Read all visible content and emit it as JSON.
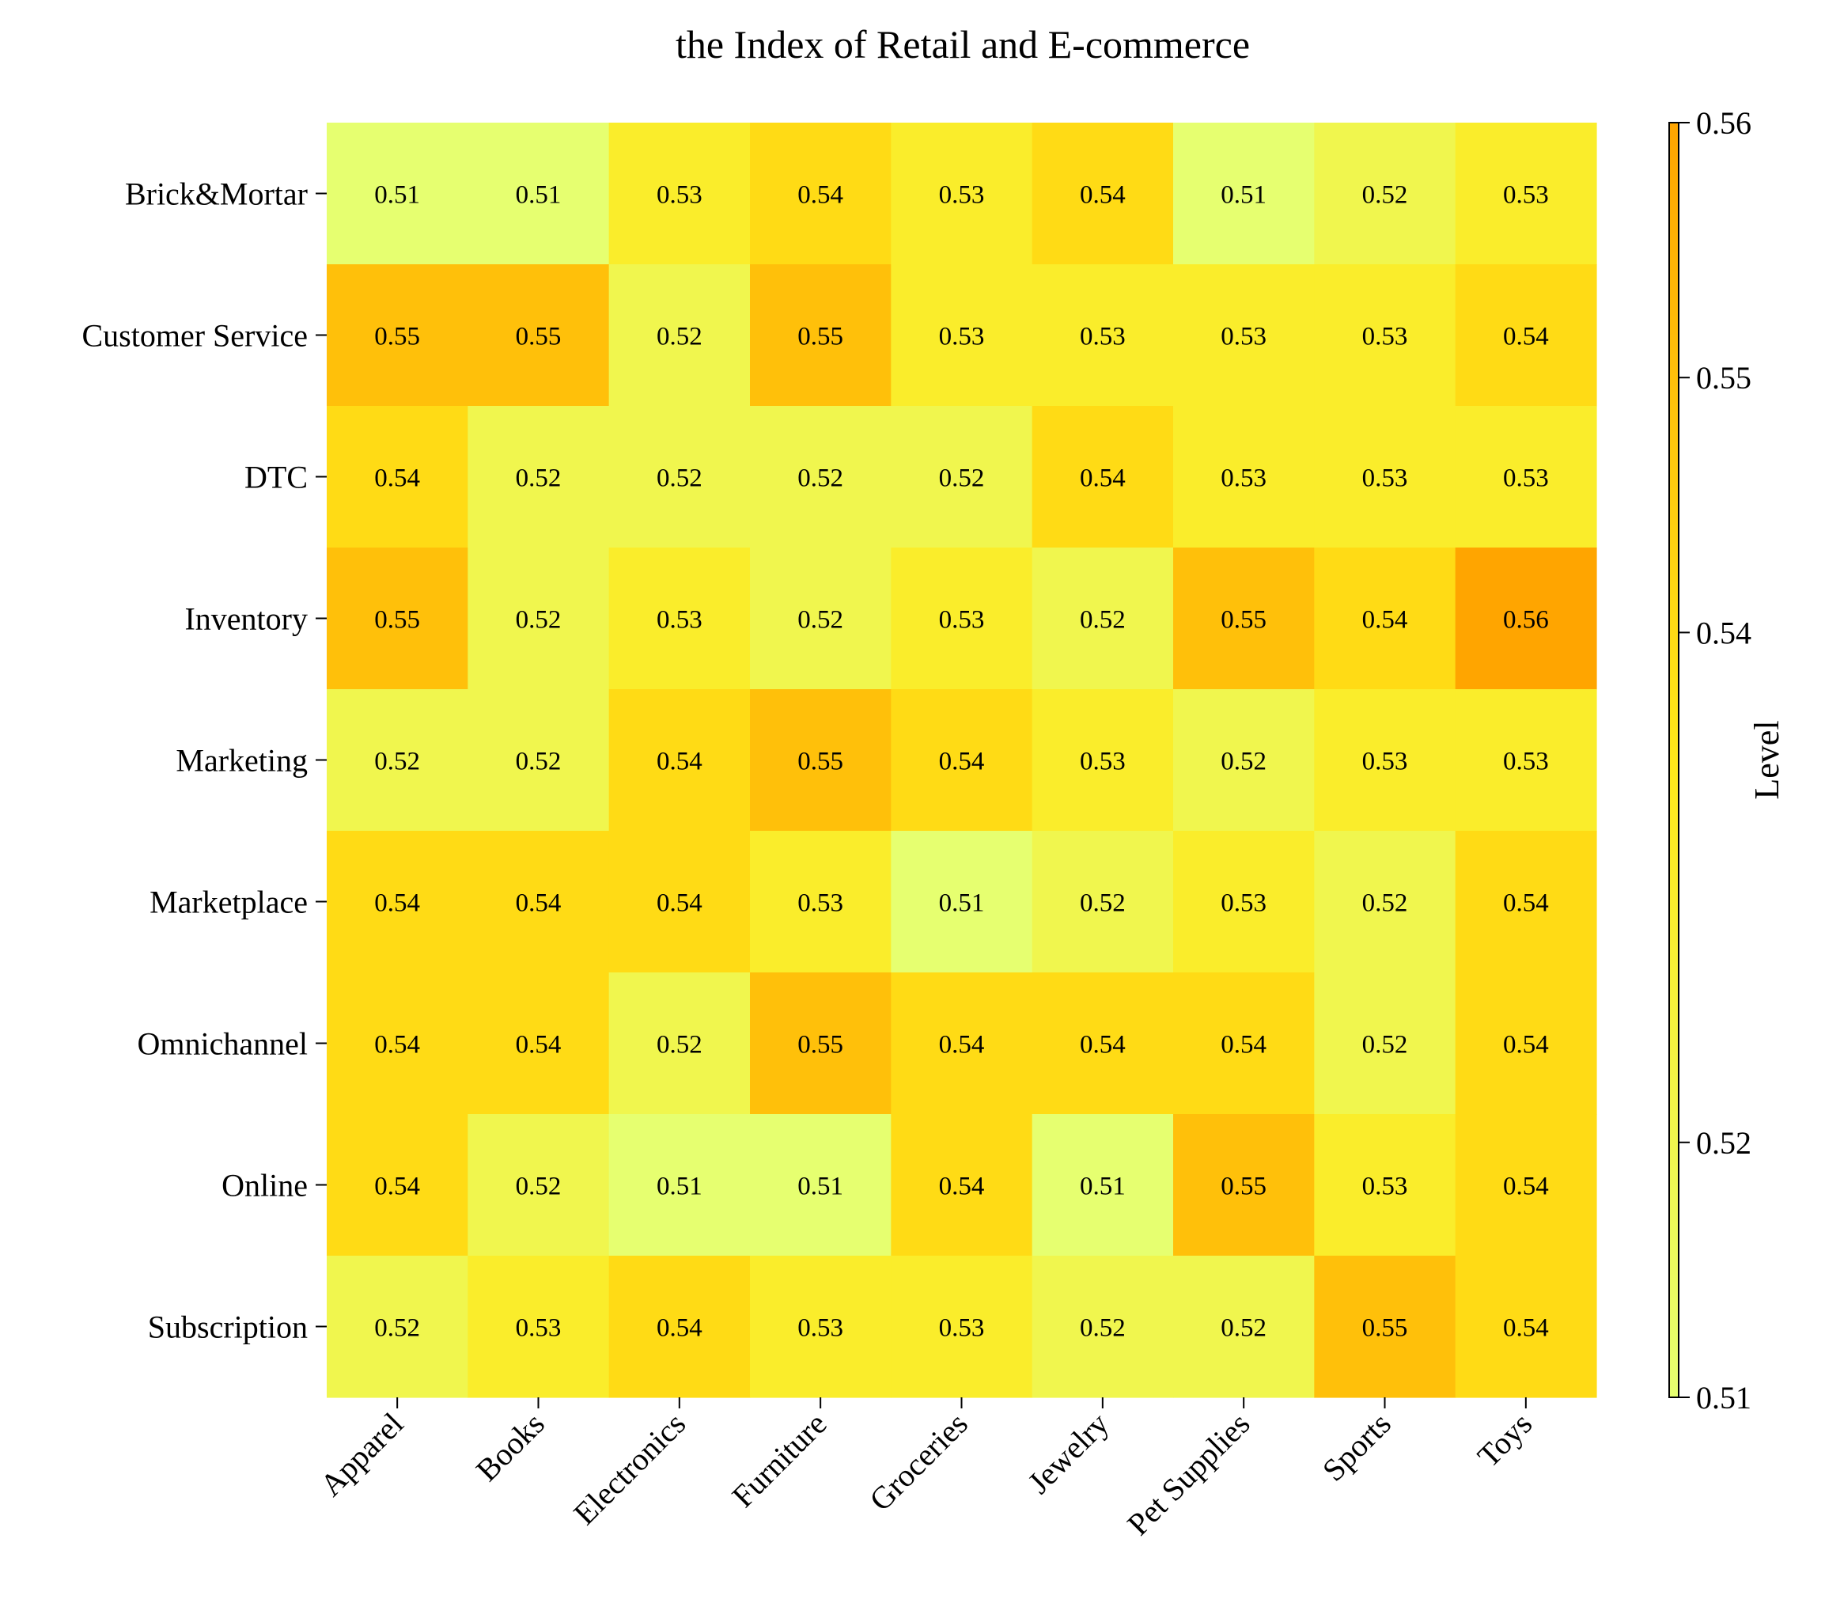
{
  "chart_data": {
    "type": "heatmap",
    "title": "the Index of Retail and E-commerce",
    "xlabel": "",
    "ylabel": "",
    "x_categories": [
      "Apparel",
      "Books",
      "Electronics",
      "Furniture",
      "Groceries",
      "Jewelry",
      "Pet Supplies",
      "Sports",
      "Toys"
    ],
    "y_categories": [
      "Brick&Mortar",
      "Customer Service",
      "DTC",
      "Inventory",
      "Marketing",
      "Marketplace",
      "Omnichannel",
      "Online",
      "Subscription"
    ],
    "values": [
      [
        0.51,
        0.51,
        0.53,
        0.54,
        0.53,
        0.54,
        0.51,
        0.52,
        0.53
      ],
      [
        0.55,
        0.55,
        0.52,
        0.55,
        0.53,
        0.53,
        0.53,
        0.53,
        0.54
      ],
      [
        0.54,
        0.52,
        0.52,
        0.52,
        0.52,
        0.54,
        0.53,
        0.53,
        0.53
      ],
      [
        0.55,
        0.52,
        0.53,
        0.52,
        0.53,
        0.52,
        0.55,
        0.54,
        0.56
      ],
      [
        0.52,
        0.52,
        0.54,
        0.55,
        0.54,
        0.53,
        0.52,
        0.53,
        0.53
      ],
      [
        0.54,
        0.54,
        0.54,
        0.53,
        0.51,
        0.52,
        0.53,
        0.52,
        0.54
      ],
      [
        0.54,
        0.54,
        0.52,
        0.55,
        0.54,
        0.54,
        0.54,
        0.52,
        0.54
      ],
      [
        0.54,
        0.52,
        0.51,
        0.51,
        0.54,
        0.51,
        0.55,
        0.53,
        0.54
      ],
      [
        0.52,
        0.53,
        0.54,
        0.53,
        0.53,
        0.52,
        0.52,
        0.55,
        0.54
      ]
    ],
    "colorbar": {
      "label": "Level",
      "range": [
        0.51,
        0.56
      ],
      "ticks": [
        "0.51",
        "0.52",
        "0.54",
        "0.55",
        "0.56"
      ],
      "colors": [
        "#e6ff70",
        "#ffe81a",
        "#ffa500"
      ]
    },
    "grid": false,
    "legend": "none"
  }
}
